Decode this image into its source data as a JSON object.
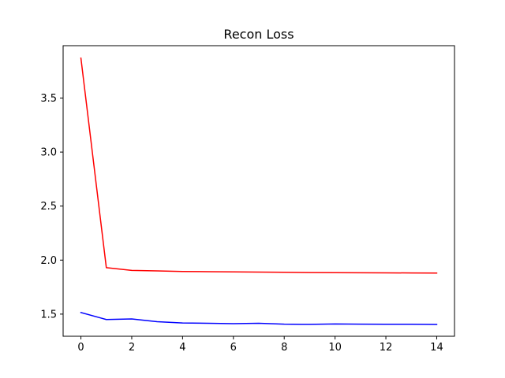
{
  "chart_data": {
    "type": "line",
    "title": "Recon Loss",
    "xlabel": "",
    "ylabel": "",
    "x": [
      0,
      1,
      2,
      3,
      4,
      5,
      6,
      7,
      8,
      9,
      10,
      11,
      12,
      13,
      14
    ],
    "xlim": [
      -0.7,
      14.7
    ],
    "ylim": [
      1.295,
      3.985
    ],
    "x_ticks": [
      0,
      2,
      4,
      6,
      8,
      10,
      12,
      14
    ],
    "y_ticks": [
      1.5,
      2.0,
      2.5,
      3.0,
      3.5
    ],
    "grid": false,
    "legend": "none",
    "series": [
      {
        "color": "#ff0000",
        "values": [
          3.87,
          1.93,
          1.905,
          1.9,
          1.895,
          1.893,
          1.891,
          1.889,
          1.887,
          1.885,
          1.884,
          1.883,
          1.882,
          1.881,
          1.88
        ]
      },
      {
        "color": "#0000ff",
        "values": [
          1.515,
          1.45,
          1.455,
          1.43,
          1.418,
          1.415,
          1.412,
          1.415,
          1.407,
          1.405,
          1.409,
          1.407,
          1.406,
          1.406,
          1.404
        ]
      }
    ]
  }
}
